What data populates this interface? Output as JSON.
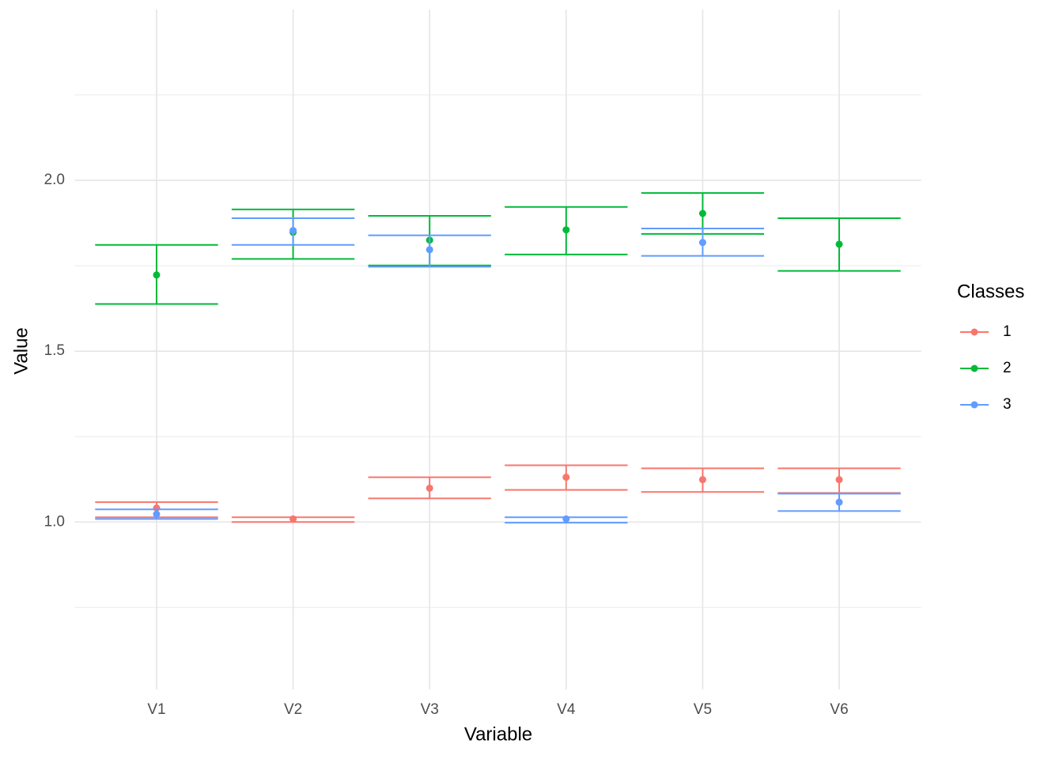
{
  "chart_data": {
    "type": "errorbar",
    "x_label": "Variable",
    "y_label": "Value",
    "categories": [
      "V1",
      "V2",
      "V3",
      "V4",
      "V5",
      "V6"
    ],
    "ylim": [
      0.51,
      2.5
    ],
    "yticks": [
      {
        "value": 1.0,
        "label": "1.0"
      },
      {
        "value": 1.5,
        "label": "1.5"
      },
      {
        "value": 2.0,
        "label": "2.0"
      }
    ],
    "minor_yticks": [
      0.75,
      1.25,
      1.75,
      2.25
    ],
    "grid": true,
    "legend_title": "Classes",
    "legend_position": "right",
    "series": [
      {
        "name": "1",
        "color": "#F8766D",
        "values": [
          1.041,
          1.009,
          1.099,
          1.131,
          1.124,
          1.124
        ],
        "lower": [
          1.014,
          1.0,
          1.069,
          1.094,
          1.088,
          1.085
        ],
        "upper": [
          1.058,
          1.014,
          1.131,
          1.166,
          1.157,
          1.157
        ]
      },
      {
        "name": "2",
        "color": "#00BA38",
        "values": [
          1.723,
          1.848,
          1.825,
          1.855,
          1.903,
          1.813
        ],
        "lower": [
          1.638,
          1.77,
          1.751,
          1.783,
          1.843,
          1.735
        ],
        "upper": [
          1.811,
          1.915,
          1.896,
          1.922,
          1.963,
          1.889
        ]
      },
      {
        "name": "3",
        "color": "#619CFF",
        "values": [
          1.023,
          1.853,
          1.797,
          1.009,
          1.818,
          1.058
        ],
        "lower": [
          1.009,
          1.811,
          1.747,
          0.998,
          1.779,
          1.032
        ],
        "upper": [
          1.037,
          1.889,
          1.839,
          1.014,
          1.859,
          1.083
        ]
      }
    ]
  }
}
